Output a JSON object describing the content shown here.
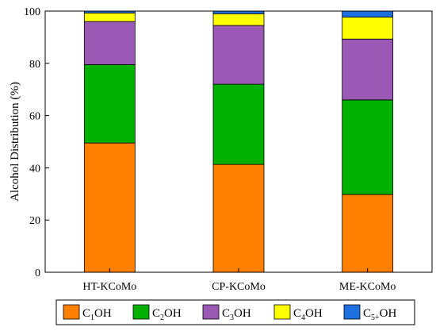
{
  "chart_data": {
    "type": "bar",
    "stacked": true,
    "ylabel": "Alcohol Distribution (%)",
    "xlabel": "",
    "ylim": [
      0,
      100
    ],
    "yticks": [
      0,
      20,
      40,
      60,
      80,
      100
    ],
    "grid": false,
    "legend_position": "bottom",
    "categories": [
      "HT-KCoMo",
      "CP-KCoMo",
      "ME-KCoMo"
    ],
    "series": [
      {
        "name": "C1OH",
        "base": "C",
        "sub": "1",
        "tail": "OH",
        "color": "#FF8000",
        "values": [
          49.5,
          41.3,
          29.8
        ]
      },
      {
        "name": "C2OH",
        "base": "C",
        "sub": "2",
        "tail": "OH",
        "color": "#00B000",
        "values": [
          30.0,
          30.7,
          36.2
        ]
      },
      {
        "name": "C3OH",
        "base": "C",
        "sub": "3",
        "tail": "OH",
        "color": "#9B59B6",
        "values": [
          16.5,
          22.5,
          23.3
        ]
      },
      {
        "name": "C4OH",
        "base": "C",
        "sub": "4",
        "tail": "OH",
        "color": "#FFFF00",
        "values": [
          3.3,
          4.5,
          8.4
        ]
      },
      {
        "name": "C5+OH",
        "base": "C",
        "sub": "5+",
        "tail": "OH",
        "color": "#1E6FE0",
        "values": [
          0.7,
          1.0,
          2.3
        ]
      }
    ]
  }
}
